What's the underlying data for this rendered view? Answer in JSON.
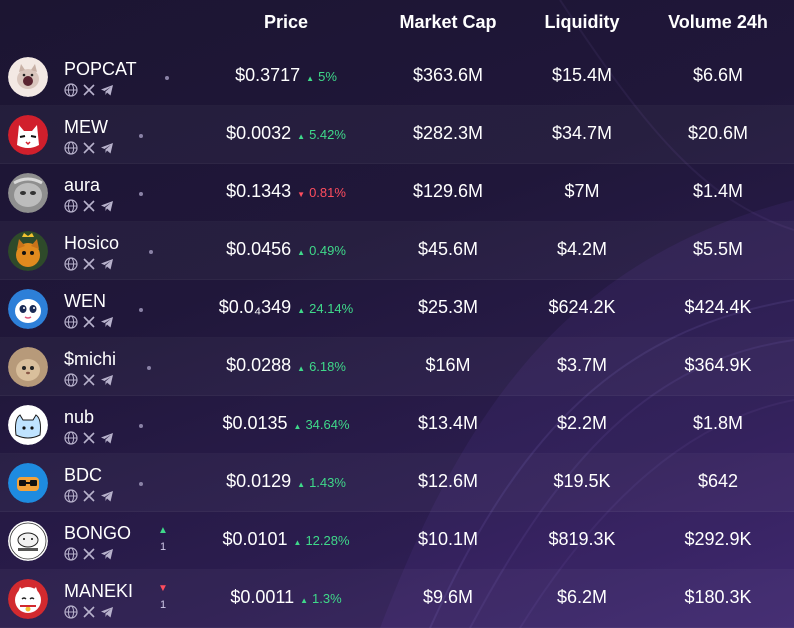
{
  "header": {
    "price": "Price",
    "market_cap": "Market Cap",
    "liquidity": "Liquidity",
    "volume": "Volume 24h"
  },
  "colors": {
    "up": "#3fd98a",
    "down": "#ff4d5e"
  },
  "tokens": [
    {
      "name": "POPCAT",
      "price": "$0.3717",
      "change_arrow": "▲",
      "change": "5%",
      "direction": "up",
      "market_cap": "$363.6M",
      "liquidity": "$15.4M",
      "volume": "$6.6M",
      "rank_arrow": "",
      "rank_change": "",
      "avatar": "popcat-avatar"
    },
    {
      "name": "MEW",
      "price": "$0.0032",
      "change_arrow": "▲",
      "change": "5.42%",
      "direction": "up",
      "market_cap": "$282.3M",
      "liquidity": "$34.7M",
      "volume": "$20.6M",
      "rank_arrow": "",
      "rank_change": "",
      "avatar": "mew-avatar"
    },
    {
      "name": "aura",
      "price": "$0.1343",
      "change_arrow": "▼",
      "change": "0.81%",
      "direction": "down",
      "market_cap": "$129.6M",
      "liquidity": "$7M",
      "volume": "$1.4M",
      "rank_arrow": "",
      "rank_change": "",
      "avatar": "aura-avatar"
    },
    {
      "name": "Hosico",
      "price": "$0.0456",
      "change_arrow": "▲",
      "change": "0.49%",
      "direction": "up",
      "market_cap": "$45.6M",
      "liquidity": "$4.2M",
      "volume": "$5.5M",
      "rank_arrow": "",
      "rank_change": "",
      "avatar": "hosico-avatar"
    },
    {
      "name": "WEN",
      "price": "$0.0₄349",
      "change_arrow": "▲",
      "change": "24.14%",
      "direction": "up",
      "market_cap": "$25.3M",
      "liquidity": "$624.2K",
      "volume": "$424.4K",
      "rank_arrow": "",
      "rank_change": "",
      "avatar": "wen-avatar"
    },
    {
      "name": "$michi",
      "price": "$0.0288",
      "change_arrow": "▲",
      "change": "6.18%",
      "direction": "up",
      "market_cap": "$16M",
      "liquidity": "$3.7M",
      "volume": "$364.9K",
      "rank_arrow": "",
      "rank_change": "",
      "avatar": "michi-avatar"
    },
    {
      "name": "nub",
      "price": "$0.0135",
      "change_arrow": "▲",
      "change": "34.64%",
      "direction": "up",
      "market_cap": "$13.4M",
      "liquidity": "$2.2M",
      "volume": "$1.8M",
      "rank_arrow": "",
      "rank_change": "",
      "avatar": "nub-avatar"
    },
    {
      "name": "BDC",
      "price": "$0.0129",
      "change_arrow": "▲",
      "change": "1.43%",
      "direction": "up",
      "market_cap": "$12.6M",
      "liquidity": "$19.5K",
      "volume": "$642",
      "rank_arrow": "",
      "rank_change": "",
      "avatar": "bdc-avatar"
    },
    {
      "name": "BONGO",
      "price": "$0.0101",
      "change_arrow": "▲",
      "change": "12.28%",
      "direction": "up",
      "market_cap": "$10.1M",
      "liquidity": "$819.3K",
      "volume": "$292.9K",
      "rank_arrow": "▲",
      "rank_change": "1",
      "avatar": "bongo-avatar"
    },
    {
      "name": "MANEKI",
      "price": "$0.0011",
      "change_arrow": "▲",
      "change": "1.3%",
      "direction": "up",
      "market_cap": "$9.6M",
      "liquidity": "$6.2M",
      "volume": "$180.3K",
      "rank_arrow": "▼",
      "rank_change": "1",
      "avatar": "maneki-avatar"
    }
  ],
  "social_icons": [
    "globe-icon",
    "x-icon",
    "telegram-icon"
  ]
}
